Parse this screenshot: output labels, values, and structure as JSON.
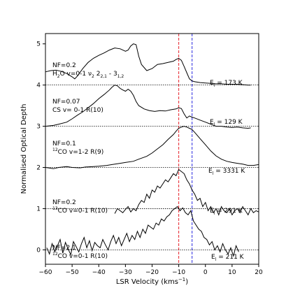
{
  "chart_data": {
    "type": "line",
    "xlabel": "LSR Velocity (kms$^{-1}$)",
    "xlabel_parts": [
      "LSR Velocity (kms",
      "−1",
      ")"
    ],
    "ylabel": "Normalised Optical Depth",
    "xlim": [
      -60,
      20
    ],
    "ylim": [
      5.25,
      -0.35
    ],
    "x_ticks": [
      -60,
      -50,
      -40,
      -30,
      -20,
      -10,
      0,
      10,
      20
    ],
    "x_tick_labels": [
      "−60",
      "−50",
      "−40",
      "−30",
      "−20",
      "−10",
      "0",
      "10",
      "20"
    ],
    "y_ticks": [
      0,
      1,
      2,
      3,
      4,
      5
    ],
    "y_tick_labels": [
      "0",
      "1",
      "2",
      "3",
      "4",
      "5"
    ],
    "grid": false,
    "reference_lines": [
      {
        "x": -10,
        "color": "#e8202a",
        "style": "dashed"
      },
      {
        "x": -5,
        "color": "#2a2ae0",
        "style": "dashed"
      }
    ],
    "baselines": [
      0,
      1,
      2,
      3,
      4
    ],
    "series": [
      {
        "id": "h2o",
        "nf_label": "NF=0.2",
        "species_label": "H2O v=0-1 ν2 2 2,1 - 3 1,2",
        "species_parts": {
          "a": "H",
          "a_sub": "2",
          "b": "O v=0-1 ",
          "nu": "ν",
          "nu_sub": "2",
          "c": " 2",
          "c_sub": "2,1",
          "d": " - 3",
          "d_sub": "1,2"
        },
        "el_label": "E_l = 173 K",
        "el_parts": {
          "a": "E",
          "sub": "l",
          "b": " = 173 K"
        },
        "x": [
          -59.5,
          -58.5,
          -57.5,
          -56.5,
          -55.5,
          -54.5,
          -53.5,
          -52.5,
          -51.5,
          -50.5,
          -49.5,
          -48.5,
          -47.5,
          -46.5,
          -45.5,
          -44.5,
          -43.5,
          -42.5,
          -41.5,
          -40.5,
          -39.5,
          -38.5,
          -37.5,
          -36.5,
          -35.5,
          -34.5,
          -33.5,
          -32.5,
          -31.5,
          -30.5,
          -29.5,
          -28.5,
          -27.5,
          -26.5,
          -25.5,
          -24.5,
          -23.5,
          -22.5,
          -21.5,
          -20.5,
          -19.5,
          -18.5,
          -17.5,
          -16.5,
          -15.5,
          -14.5,
          -13.5,
          -12.5,
          -11.5,
          -10.5,
          -9.5,
          -8.5,
          -7.5,
          -6.5,
          -5.5,
          -4.5,
          -3.5,
          -2.5,
          -1.5,
          -0.5,
          0.5,
          1.5,
          2.5,
          3.5,
          4.5,
          5.5,
          6.5,
          7.5,
          8.5,
          9.5,
          10.5,
          11.5,
          12.5
        ],
        "values": [
          0.05,
          -0.1,
          0.15,
          -0.05,
          0.1,
          0.25,
          -0.08,
          0.18,
          0.02,
          -0.12,
          0.2,
          0.08,
          -0.05,
          0.15,
          0.3,
          0.05,
          0.22,
          -0.02,
          0.18,
          0.1,
          0.05,
          0.25,
          0.12,
          0.0,
          0.2,
          0.35,
          0.15,
          0.3,
          0.1,
          0.25,
          0.4,
          0.2,
          0.35,
          0.25,
          0.45,
          0.3,
          0.5,
          0.4,
          0.6,
          0.55,
          0.5,
          0.65,
          0.6,
          0.75,
          0.7,
          0.8,
          0.85,
          0.95,
          1.0,
          1.05,
          0.95,
          1.02,
          0.9,
          0.85,
          0.95,
          0.7,
          0.6,
          0.5,
          0.45,
          0.3,
          0.25,
          0.12,
          0.2,
          0.0,
          0.1,
          -0.05,
          0.15,
          0.0,
          -0.1,
          0.05,
          -0.15,
          0.1,
          -0.05
        ]
      },
      {
        "id": "cs",
        "nf_label": "NF=0.07",
        "species_label": "CS v= 0-1 R(10)",
        "species_parts": {
          "a": "CS v= 0-1 R(10)"
        },
        "el_label": "E_l = 129 K",
        "el_parts": {
          "a": "E",
          "sub": "l",
          "b": " = 129 K"
        },
        "x": [
          -34,
          -33,
          -32,
          -31,
          -30,
          -29,
          -28,
          -27,
          -26,
          -25,
          -24,
          -23,
          -22,
          -21,
          -20,
          -19,
          -18,
          -17,
          -16,
          -15,
          -14,
          -13,
          -12,
          -11,
          -10,
          -9,
          -8,
          -7,
          -6,
          -5,
          -4,
          -3,
          -2,
          -1,
          0,
          1,
          2,
          3,
          4,
          5,
          6,
          7,
          8,
          9,
          10,
          11,
          12,
          13,
          14,
          15,
          16,
          17,
          18,
          19,
          20
        ],
        "values": [
          0.88,
          1.0,
          0.95,
          0.9,
          0.98,
          1.05,
          0.92,
          1.0,
          0.95,
          1.1,
          1.2,
          1.15,
          1.35,
          1.25,
          1.45,
          1.4,
          1.55,
          1.5,
          1.6,
          1.7,
          1.65,
          1.75,
          1.85,
          1.8,
          1.95,
          1.9,
          1.85,
          1.7,
          1.6,
          1.45,
          1.35,
          1.2,
          1.25,
          1.05,
          1.15,
          0.95,
          1.05,
          0.9,
          1.0,
          0.85,
          1.05,
          0.95,
          0.9,
          1.0,
          0.85,
          0.95,
          1.0,
          0.9,
          1.05,
          0.95,
          0.85,
          1.0,
          0.9,
          0.95,
          0.92
        ]
      },
      {
        "id": "co12-v12",
        "nf_label": "NF=0.1",
        "species_label": "12CO v=1-2 R(9)",
        "species_parts": {
          "sup": "12",
          "a": "CO v=1-2 R(9)"
        },
        "el_label": "E_l = 3331 K",
        "el_parts": {
          "a": "E",
          "sub": "l",
          "b": " = 3331 K"
        },
        "x": [
          -60,
          -57,
          -55,
          -52,
          -50,
          -47,
          -45,
          -42,
          -40,
          -37,
          -35,
          -32,
          -30,
          -27,
          -25,
          -22,
          -20,
          -18,
          -16,
          -14,
          -12,
          -11,
          -10,
          -9,
          -8,
          -7,
          -6,
          -5,
          -4,
          -2,
          0,
          2,
          4,
          6,
          8,
          10,
          12,
          14,
          16,
          18,
          20
        ],
        "values": [
          2.0,
          1.97,
          2.0,
          2.02,
          2.0,
          1.99,
          2.01,
          2.02,
          2.03,
          2.05,
          2.07,
          2.1,
          2.12,
          2.15,
          2.2,
          2.27,
          2.35,
          2.45,
          2.55,
          2.68,
          2.8,
          2.88,
          2.95,
          2.98,
          3.0,
          2.98,
          2.95,
          2.92,
          2.85,
          2.7,
          2.55,
          2.4,
          2.28,
          2.2,
          2.15,
          2.12,
          2.1,
          2.08,
          2.05,
          2.05,
          2.07
        ]
      },
      {
        "id": "co13",
        "nf_label": "NF=0.2",
        "species_label": "13CO v=0-1 R(10)",
        "species_parts": {
          "sup": "13",
          "a": "CO v=0-1 R(10)"
        },
        "el_label": "E_l = 291 K",
        "el_parts": {
          "a": "E",
          "sub": "l",
          "b": " = 291 K"
        },
        "x": [
          -60,
          -57,
          -55,
          -52,
          -50,
          -48,
          -46,
          -44,
          -42,
          -40,
          -38,
          -36,
          -35,
          -34,
          -33,
          -32,
          -31,
          -30,
          -29,
          -28,
          -27,
          -26,
          -25,
          -23,
          -21,
          -19,
          -17,
          -15,
          -13,
          -11,
          -10,
          -9,
          -8,
          -7,
          -6,
          -5,
          -4,
          -2,
          0,
          2,
          4,
          6,
          8,
          10,
          12,
          14,
          16,
          17
        ],
        "values": [
          3.0,
          3.02,
          3.05,
          3.1,
          3.18,
          3.27,
          3.35,
          3.45,
          3.55,
          3.67,
          3.77,
          3.88,
          3.95,
          4.0,
          3.98,
          3.92,
          3.88,
          3.85,
          3.9,
          3.85,
          3.75,
          3.6,
          3.5,
          3.42,
          3.38,
          3.36,
          3.38,
          3.37,
          3.4,
          3.42,
          3.45,
          3.43,
          3.3,
          3.2,
          3.25,
          3.22,
          3.2,
          3.15,
          3.1,
          3.05,
          3.0,
          3.0,
          2.98,
          2.97,
          2.98,
          2.96,
          2.95,
          2.96
        ]
      },
      {
        "id": "co12-v01",
        "nf_label": "NF=2.1",
        "species_label": "12CO v=0-1 R(10)",
        "species_parts": {
          "sup": "12",
          "a": "CO v=0-1 R(10)"
        },
        "el_label": "E_l = 211 K",
        "el_parts": {
          "a": "E",
          "sub": "l",
          "b": " = 211 K"
        },
        "x": [
          -60,
          -58,
          -56,
          -54,
          -52,
          -50,
          -49,
          -48,
          -46,
          -44,
          -42,
          -40,
          -38,
          -36,
          -34,
          -32,
          -31,
          -30,
          -29,
          -28,
          -27,
          -26,
          -25,
          -24,
          -22,
          -20,
          -18,
          -16,
          -14,
          -12,
          -11,
          -10,
          -9,
          -8,
          -7,
          -6,
          -5,
          -4,
          -2,
          0,
          2,
          4,
          6,
          8,
          10,
          12,
          14,
          16,
          17
        ],
        "values": [
          4.32,
          4.35,
          4.36,
          4.33,
          4.28,
          4.2,
          4.15,
          4.22,
          4.4,
          4.55,
          4.65,
          4.72,
          4.78,
          4.85,
          4.9,
          4.88,
          4.85,
          4.82,
          4.85,
          4.95,
          5.0,
          4.98,
          4.7,
          4.5,
          4.35,
          4.4,
          4.5,
          4.52,
          4.55,
          4.58,
          4.62,
          4.65,
          4.6,
          4.45,
          4.3,
          4.15,
          4.1,
          4.08,
          4.06,
          4.05,
          4.04,
          4.03,
          4.03,
          4.02,
          4.02,
          4.02,
          4.01,
          4.0,
          4.0
        ]
      }
    ]
  }
}
